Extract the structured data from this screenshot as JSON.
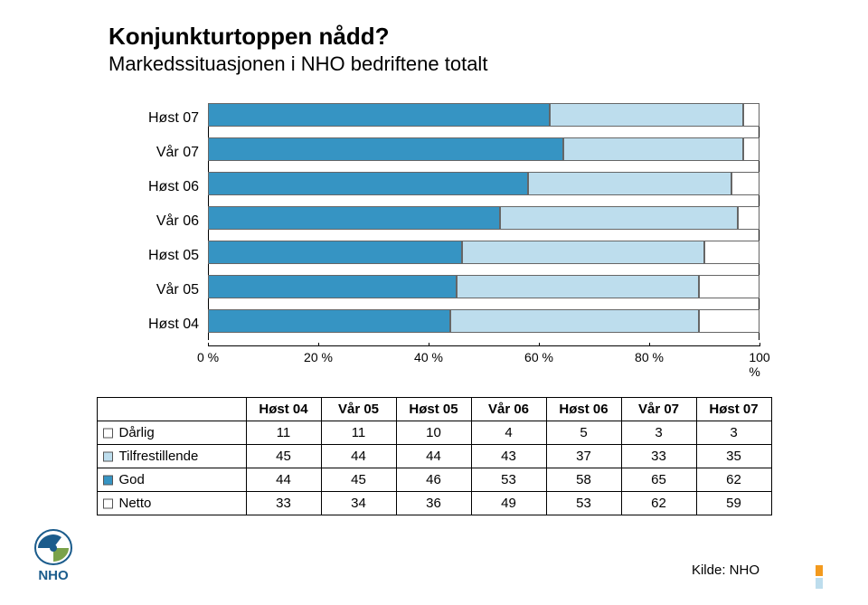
{
  "title": "Konjunkturtoppen nådd?",
  "subtitle": "Markedssituasjonen i NHO bedriftene totalt",
  "source_label": "Kilde: NHO",
  "colors": {
    "darlig": "#ffffff",
    "tilfrestillende": "#bddded",
    "god": "#3694c3",
    "netto": "#ffffff",
    "axis": "#000000",
    "border": "#666666",
    "text": "#000000",
    "logo_blue": "#1b5c8c",
    "logo_green": "#7aa24a",
    "accent": "#f39a1e"
  },
  "chart": {
    "type": "stacked-bar-horizontal",
    "xlim": [
      0,
      100
    ],
    "xticks": [
      0,
      20,
      40,
      60,
      80,
      100
    ],
    "xtick_labels": [
      "0 %",
      "20 %",
      "40 %",
      "60 %",
      "80 %",
      "100 %"
    ],
    "series_order": [
      "god",
      "tilfrestillende",
      "darlig"
    ],
    "periods_top_to_bottom": [
      "Høst 07",
      "Vår 07",
      "Høst 06",
      "Vår 06",
      "Høst 05",
      "Vår 05",
      "Høst 04"
    ],
    "bars": {
      "Høst 07": {
        "god": 62,
        "tilfrestillende": 35,
        "darlig": 3
      },
      "Vår 07": {
        "god": 65,
        "tilfrestillende": 33,
        "darlig": 3
      },
      "Høst 06": {
        "god": 58,
        "tilfrestillende": 37,
        "darlig": 5
      },
      "Vår 06": {
        "god": 53,
        "tilfrestillende": 43,
        "darlig": 4
      },
      "Høst 05": {
        "god": 46,
        "tilfrestillende": 44,
        "darlig": 10
      },
      "Vår 05": {
        "god": 45,
        "tilfrestillende": 44,
        "darlig": 11
      },
      "Høst 04": {
        "god": 44,
        "tilfrestillende": 45,
        "darlig": 11
      }
    }
  },
  "table": {
    "columns": [
      "Høst 04",
      "Vår 05",
      "Høst 05",
      "Vår 06",
      "Høst 06",
      "Vår 07",
      "Høst 07"
    ],
    "rows": [
      {
        "key": "darlig",
        "label": "Dårlig",
        "swatch": "darlig",
        "values": [
          11,
          11,
          10,
          4,
          5,
          3,
          3
        ]
      },
      {
        "key": "tilfrestillende",
        "label": "Tilfrestillende",
        "swatch": "tilfrestillende",
        "values": [
          45,
          44,
          44,
          43,
          37,
          33,
          35
        ]
      },
      {
        "key": "god",
        "label": "God",
        "swatch": "god",
        "values": [
          44,
          45,
          46,
          53,
          58,
          65,
          62
        ]
      },
      {
        "key": "netto",
        "label": "Netto",
        "swatch": "netto",
        "values": [
          33,
          34,
          36,
          49,
          53,
          62,
          59
        ]
      }
    ]
  },
  "logo_text": "NHO"
}
